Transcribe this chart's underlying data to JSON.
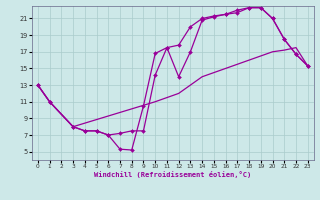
{
  "xlabel": "Windchill (Refroidissement éolien,°C)",
  "background_color": "#cde8e8",
  "grid_color": "#aacccc",
  "line_color": "#990099",
  "xlim": [
    -0.5,
    23.5
  ],
  "ylim": [
    4.0,
    22.5
  ],
  "xticks": [
    0,
    1,
    2,
    3,
    4,
    5,
    6,
    7,
    8,
    9,
    10,
    11,
    12,
    13,
    14,
    15,
    16,
    17,
    18,
    19,
    20,
    21,
    22,
    23
  ],
  "yticks": [
    5,
    7,
    9,
    11,
    13,
    15,
    17,
    19,
    21
  ],
  "line1_x": [
    0,
    1,
    3,
    4,
    5,
    6,
    7,
    8,
    9,
    10,
    11,
    12,
    13,
    14,
    15,
    16,
    17,
    18,
    19,
    20,
    21,
    22,
    23
  ],
  "line1_y": [
    13,
    11,
    8,
    7.5,
    7.5,
    7,
    5.3,
    5.2,
    10.5,
    16.8,
    17.5,
    14,
    17,
    20.8,
    21.2,
    21.5,
    21.7,
    22.3,
    22.3,
    21,
    18.5,
    16.7,
    15.3
  ],
  "line2_x": [
    0,
    1,
    3,
    4,
    5,
    6,
    7,
    8,
    9,
    10,
    11,
    12,
    13,
    14,
    15,
    16,
    17,
    18,
    19,
    20,
    21,
    22,
    23
  ],
  "line2_y": [
    13,
    11,
    8,
    7.5,
    7.5,
    7,
    7.2,
    7.5,
    7.5,
    14.2,
    17.5,
    17.8,
    20,
    21.0,
    21.3,
    21.5,
    22.0,
    22.3,
    22.3,
    21,
    18.5,
    16.7,
    15.3
  ],
  "line3_x": [
    0,
    1,
    3,
    10,
    11,
    12,
    13,
    14,
    15,
    16,
    17,
    18,
    19,
    20,
    21,
    22,
    23
  ],
  "line3_y": [
    13,
    11,
    8,
    11,
    11.5,
    12,
    13,
    14,
    14.5,
    15,
    15.5,
    16,
    16.5,
    17,
    17.2,
    17.5,
    15.3
  ]
}
